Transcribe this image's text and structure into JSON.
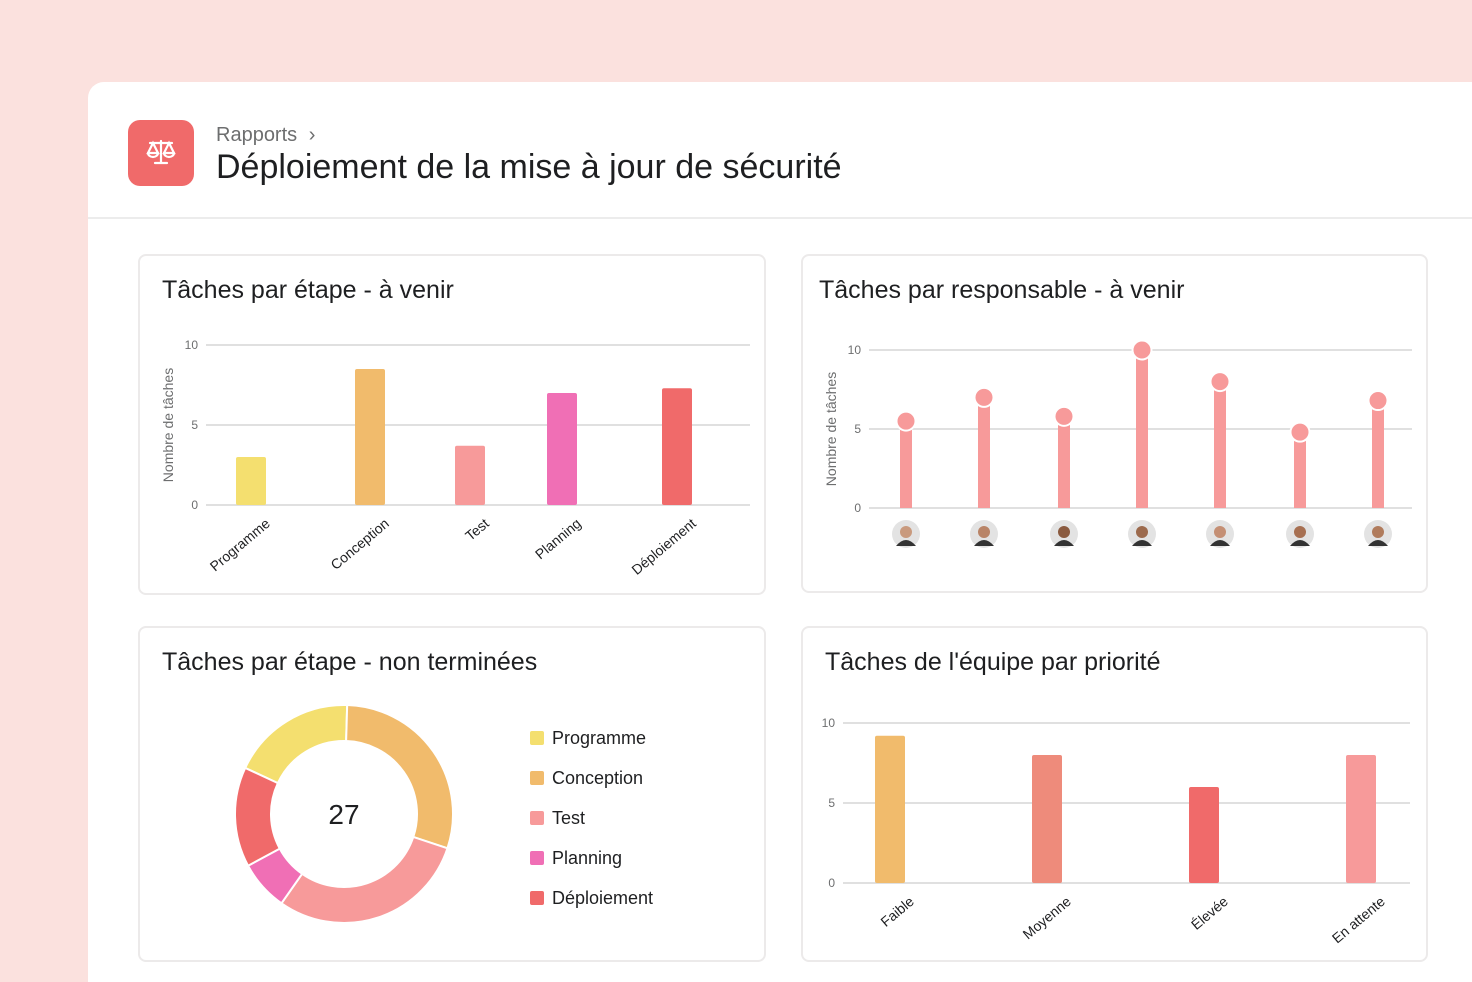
{
  "header": {
    "breadcrumb": "Rapports",
    "breadcrumb_sep": "›",
    "title": "Déploiement de la mise à jour de sécurité",
    "icon": "scale-icon",
    "icon_color": "#f06a6a"
  },
  "chart_data": [
    {
      "type": "bar",
      "title": "Tâches par étape - à venir",
      "ylabel": "Nombre de tâches",
      "ylim": [
        0,
        10
      ],
      "yticks": [
        0,
        5,
        10
      ],
      "grid": true,
      "categories": [
        "Programme",
        "Conception",
        "Test",
        "Planning",
        "Déploiement"
      ],
      "values": [
        3,
        8.5,
        3.7,
        7,
        7.3
      ],
      "colors": [
        "#f4df6f",
        "#f1bb6c",
        "#f79a9a",
        "#f06fb5",
        "#f06a6a"
      ]
    },
    {
      "type": "bar",
      "title": "Tâches par responsable - à venir",
      "ylabel": "Nombre de tâches",
      "ylim": [
        0,
        10
      ],
      "yticks": [
        0,
        5,
        10
      ],
      "grid": true,
      "categories": [
        "avatar-1",
        "avatar-2",
        "avatar-3",
        "avatar-4",
        "avatar-5",
        "avatar-6",
        "avatar-7"
      ],
      "values": [
        5.5,
        7,
        5.8,
        10,
        8,
        4.8,
        6.8
      ],
      "color": "#f79a9a"
    },
    {
      "type": "pie",
      "title": "Tâches par étape - non terminées",
      "total": "27",
      "categories": [
        "Programme",
        "Conception",
        "Test",
        "Planning",
        "Déploiement"
      ],
      "values": [
        5,
        8,
        8,
        2,
        4
      ],
      "colors": [
        "#f4df6f",
        "#f1bb6c",
        "#f79a9a",
        "#f06fb5",
        "#f06a6a"
      ]
    },
    {
      "type": "bar",
      "title": "Tâches de l'équipe par priorité",
      "ylim": [
        0,
        10
      ],
      "yticks": [
        0,
        5,
        10
      ],
      "grid": true,
      "categories": [
        "Faible",
        "Moyenne",
        "Élevée",
        "En attente"
      ],
      "values": [
        9.2,
        8,
        6,
        8
      ],
      "colors": [
        "#f1bb6c",
        "#ee8b7b",
        "#f06a6a",
        "#f79a9a"
      ]
    }
  ]
}
